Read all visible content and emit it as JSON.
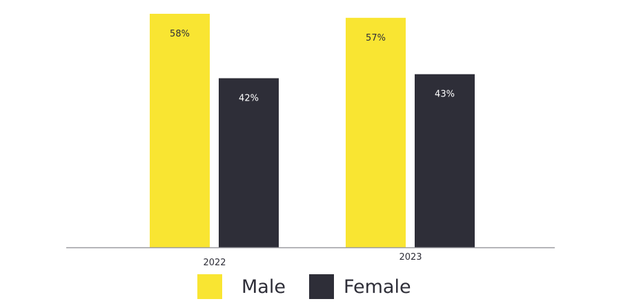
{
  "chart_data": {
    "type": "bar",
    "categories": [
      "2022",
      "2023"
    ],
    "series": [
      {
        "name": "Male",
        "values": [
          58,
          57
        ],
        "labels": [
          "58%",
          "57%"
        ],
        "color": "#f9e532"
      },
      {
        "name": "Female",
        "values": [
          42,
          43
        ],
        "labels": [
          "42%",
          "43%"
        ],
        "color": "#2e2e38"
      }
    ],
    "ylim": [
      0,
      58
    ],
    "grid": false,
    "legend_placement": "bottom-center",
    "label_colors": {
      "Male": "#2e2e38",
      "Female": "#ffffff"
    },
    "axis_color": "#9a9aa0"
  }
}
